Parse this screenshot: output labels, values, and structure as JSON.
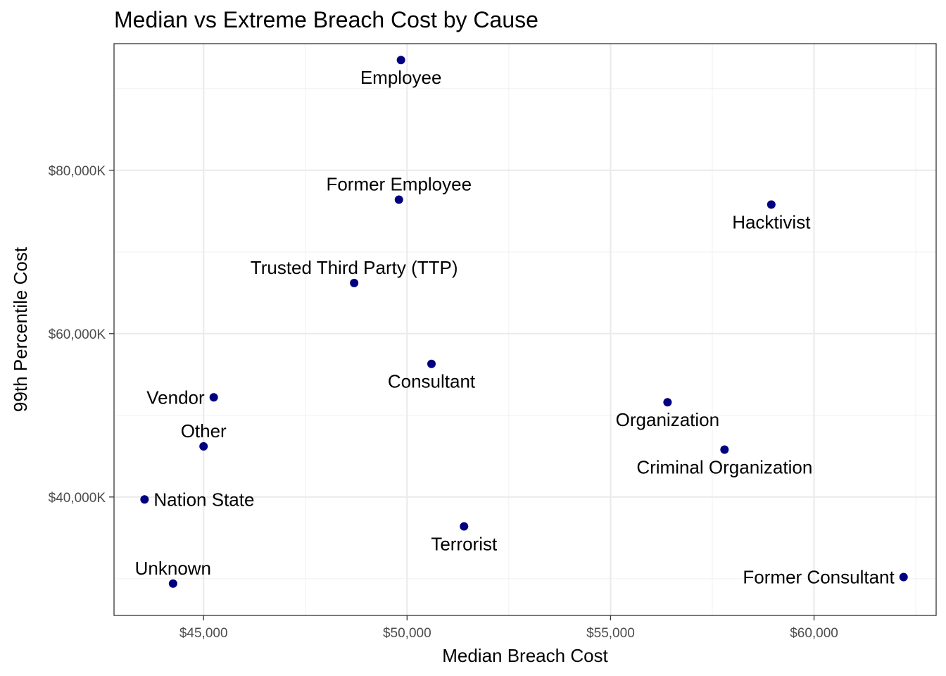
{
  "chart_data": {
    "type": "scatter",
    "title": "Median vs Extreme Breach Cost by Cause",
    "xlabel": "Median Breach Cost",
    "ylabel": "99th Percentile Cost",
    "xlim": [
      42800,
      63000
    ],
    "ylim": [
      25500,
      95500
    ],
    "x_ticks": [
      45000,
      50000,
      55000,
      60000
    ],
    "x_tick_labels": [
      "$45,000",
      "$50,000",
      "$55,000",
      "$60,000"
    ],
    "y_ticks": [
      40000,
      60000,
      80000
    ],
    "y_tick_labels": [
      "$40,000K",
      "$60,000K",
      "$80,000K"
    ],
    "grid": true,
    "point_color": "#000080",
    "points": [
      {
        "label": "Employee",
        "x": 49850,
        "y": 93500,
        "label_pos": "below"
      },
      {
        "label": "Former Employee",
        "x": 49800,
        "y": 76400,
        "label_pos": "above"
      },
      {
        "label": "Hacktivist",
        "x": 58950,
        "y": 75800,
        "label_pos": "below"
      },
      {
        "label": "Trusted Third Party (TTP)",
        "x": 48700,
        "y": 66200,
        "label_pos": "above"
      },
      {
        "label": "Consultant",
        "x": 50600,
        "y": 56300,
        "label_pos": "below"
      },
      {
        "label": "Vendor",
        "x": 45250,
        "y": 52200,
        "label_pos": "left"
      },
      {
        "label": "Organization",
        "x": 56400,
        "y": 51600,
        "label_pos": "below"
      },
      {
        "label": "Other",
        "x": 45000,
        "y": 46200,
        "label_pos": "above"
      },
      {
        "label": "Criminal Organization",
        "x": 57800,
        "y": 45800,
        "label_pos": "below"
      },
      {
        "label": "Nation State",
        "x": 43550,
        "y": 39700,
        "label_pos": "right"
      },
      {
        "label": "Terrorist",
        "x": 51400,
        "y": 36400,
        "label_pos": "below"
      },
      {
        "label": "Unknown",
        "x": 44250,
        "y": 29400,
        "label_pos": "above"
      },
      {
        "label": "Former Consultant",
        "x": 62200,
        "y": 30200,
        "label_pos": "left"
      }
    ]
  }
}
